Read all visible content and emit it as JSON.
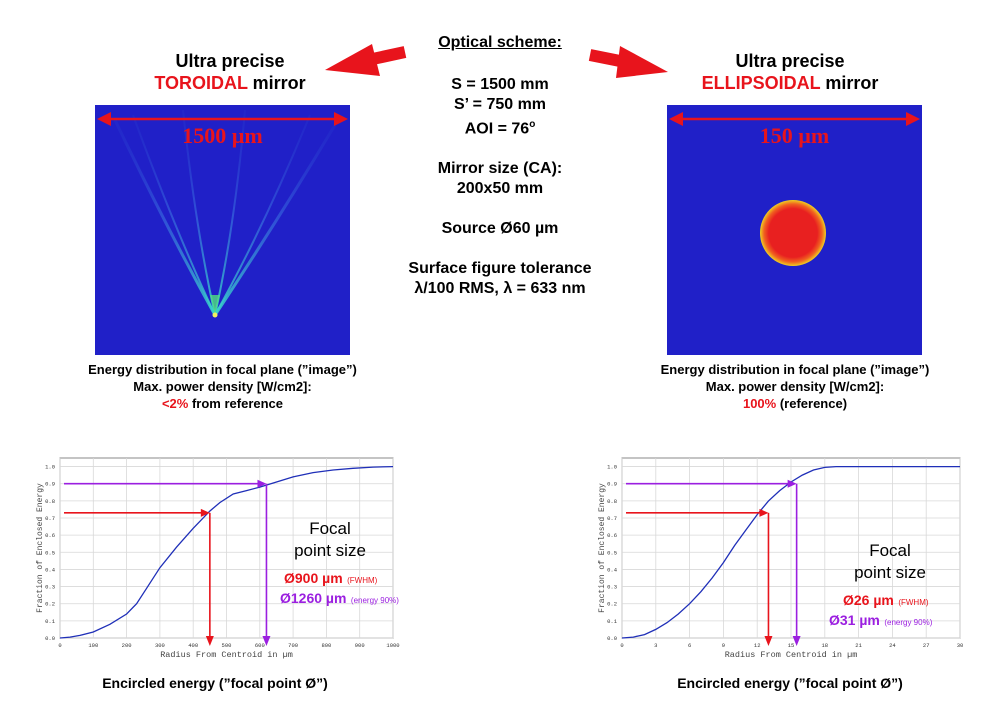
{
  "scheme": {
    "title": "Optical scheme:",
    "s": "S = 1500 mm",
    "s_prime": "S’ = 750 mm",
    "aoi": "AOI = 76",
    "aoi_unit": "o",
    "mirror_size_label": "Mirror size (CA):",
    "mirror_size": "200x50 mm",
    "source": "Source Ø60 µm",
    "tolerance_label": "Surface figure tolerance",
    "tolerance": "λ/100 RMS, λ = 633 nm"
  },
  "left": {
    "title_line1": "Ultra precise",
    "title_highlight": "TOROIDAL",
    "title_rest": " mirror",
    "scale": "1500 µm",
    "caption1": "Energy distribution in focal plane (”image”)",
    "caption2": "Max. power density [W/cm2]:",
    "density_value": "<2%",
    "density_rest": " from reference",
    "focal_label1": "Focal",
    "focal_label2": "point size",
    "fwhm_value": "Ø900 µm",
    "fwhm_note": "(FWHM)",
    "energy_value": "Ø1260 µm",
    "energy_note": "(energy 90%)",
    "bottom_caption": "Encircled energy (”focal point Ø”)"
  },
  "right": {
    "title_line1": "Ultra precise",
    "title_highlight": "ELLIPSOIDAL",
    "title_rest": " mirror",
    "scale": "150 µm",
    "caption1": "Energy distribution in focal plane (”image”)",
    "caption2": "Max. power density [W/cm2]:",
    "density_value": "100%",
    "density_rest": " (reference)",
    "focal_label1": "Focal",
    "focal_label2": "point size",
    "fwhm_value": "Ø26 µm",
    "fwhm_note": "(FWHM)",
    "energy_value": "Ø31 µm",
    "energy_note": "(energy 90%)",
    "bottom_caption": "Encircled energy (”focal point Ø”)"
  },
  "colors": {
    "accent_red": "#e8141c",
    "accent_purple": "#9b1fe0",
    "curve_blue": "#1f2fb8",
    "image_bg": "#2020c8"
  },
  "chart_data": [
    {
      "type": "line",
      "xlabel": "Radius From Centroid in µm",
      "ylabel": "Fraction of Enclosed Energy",
      "xlim": [
        0,
        1000
      ],
      "ylim": [
        0,
        1.05
      ],
      "xticks": [
        0,
        100,
        200,
        300,
        400,
        500,
        600,
        700,
        800,
        900,
        1000
      ],
      "yticks": [
        0.0,
        0.1,
        0.2,
        0.3,
        0.4,
        0.5,
        0.6,
        0.7,
        0.8,
        0.9,
        1.0
      ],
      "grid": true,
      "x": [
        0,
        30,
        60,
        100,
        150,
        200,
        230,
        260,
        300,
        350,
        400,
        450,
        480,
        520,
        560,
        600,
        650,
        700,
        760,
        820,
        880,
        940,
        1000
      ],
      "y": [
        0,
        0.005,
        0.015,
        0.035,
        0.08,
        0.14,
        0.2,
        0.29,
        0.41,
        0.53,
        0.64,
        0.74,
        0.79,
        0.84,
        0.86,
        0.88,
        0.91,
        0.94,
        0.965,
        0.98,
        0.99,
        0.997,
        1.0
      ],
      "annotations": [
        {
          "kind": "fwhm",
          "x": 450,
          "y": 0.73
        },
        {
          "kind": "energy90",
          "x": 620,
          "y": 0.9
        }
      ]
    },
    {
      "type": "line",
      "xlabel": "Radius From Centroid in µm",
      "ylabel": "Fraction of Enclosed Energy",
      "xlim": [
        0,
        30
      ],
      "ylim": [
        0,
        1.05
      ],
      "xticks": [
        0,
        3,
        6,
        9,
        12,
        15,
        18,
        21,
        24,
        27,
        30
      ],
      "yticks": [
        0.0,
        0.1,
        0.2,
        0.3,
        0.4,
        0.5,
        0.6,
        0.7,
        0.8,
        0.9,
        1.0
      ],
      "grid": true,
      "x": [
        0,
        1,
        2,
        3,
        4,
        5,
        6,
        7,
        8,
        9,
        10,
        11,
        12,
        13,
        14,
        15,
        16,
        17,
        18,
        19,
        20,
        21,
        30
      ],
      "y": [
        0,
        0.005,
        0.02,
        0.05,
        0.09,
        0.14,
        0.2,
        0.27,
        0.35,
        0.44,
        0.54,
        0.63,
        0.72,
        0.8,
        0.86,
        0.91,
        0.95,
        0.98,
        0.995,
        1.0,
        1.0,
        1.0,
        1.0
      ],
      "annotations": [
        {
          "kind": "fwhm",
          "x": 13,
          "y": 0.73
        },
        {
          "kind": "energy90",
          "x": 15.5,
          "y": 0.9
        }
      ]
    }
  ]
}
